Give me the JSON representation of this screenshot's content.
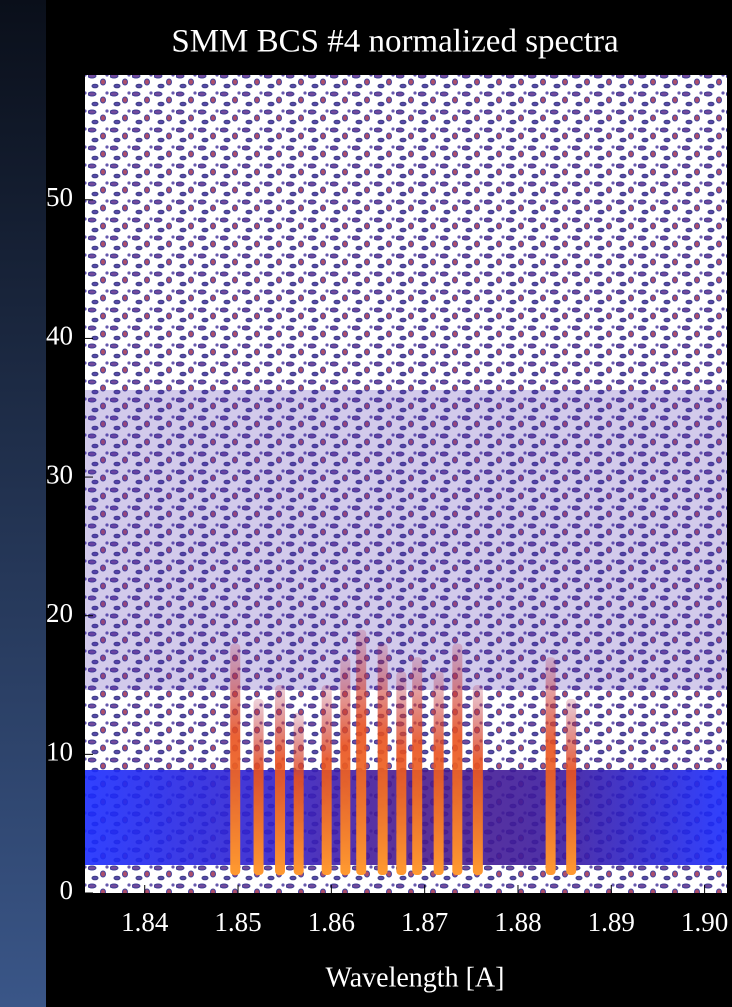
{
  "chart_data": {
    "type": "heatmap",
    "title": "SMM BCS #4 normalized spectra",
    "x_label": "Wavelength [A]",
    "x": [
      1.8497,
      1.8522,
      1.8545,
      1.8565,
      1.8595,
      1.8615,
      1.8632,
      1.8655,
      1.8675,
      1.8692,
      1.8715,
      1.8735,
      1.8757,
      1.8835,
      1.8857
    ],
    "values": [
      18,
      14,
      15,
      13,
      15,
      17,
      19,
      18,
      16,
      17,
      16,
      18,
      15,
      17,
      14
    ],
    "color": "#e8501e",
    "xlim": [
      1.8336,
      1.9024
    ],
    "ylim": [
      0,
      59
    ],
    "xticks": [
      1.84,
      1.85,
      1.86,
      1.87,
      1.88,
      1.89,
      {
        "value": 1.9,
        "label": "1.90"
      }
    ],
    "yticks": [
      0,
      10,
      20,
      30,
      40,
      50
    ]
  }
}
